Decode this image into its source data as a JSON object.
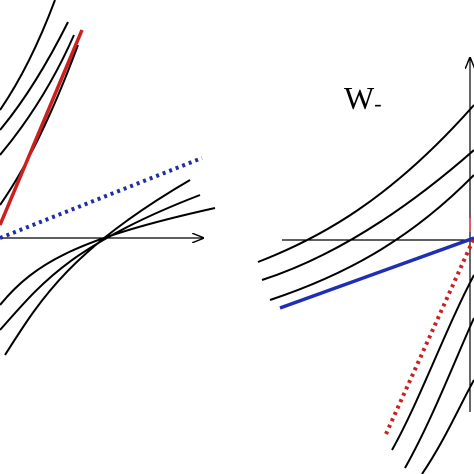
{
  "figure": {
    "label_main": "W",
    "label_sub": "-"
  },
  "colors": {
    "curve": "#000000",
    "axis": "#000000",
    "left_solid_line": "#cc1f1f",
    "left_dotted_line": "#1f2fa0",
    "right_solid_line": "#1f2fb5",
    "right_dotted_line": "#cc1f1f",
    "background": "#ffffff"
  }
}
